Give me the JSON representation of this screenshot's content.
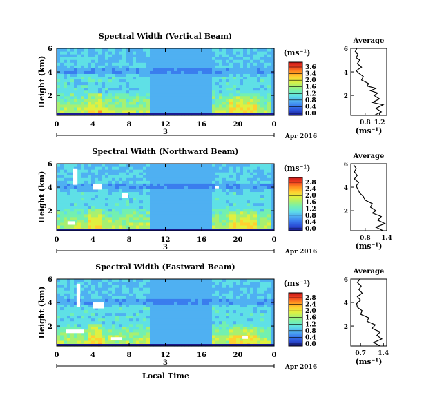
{
  "figure": {
    "x_axis_title": "Local Time",
    "date_label": "Apr 2016",
    "cbar_unit": "(ms⁻¹)",
    "avg_title": "Average",
    "avg_unit": "(ms⁻¹)",
    "colormap": [
      "#1a1a8f",
      "#2b4fd6",
      "#3a7dee",
      "#4fb0f2",
      "#5fe0e6",
      "#73f0b0",
      "#a8f070",
      "#e0f040",
      "#ffd030",
      "#ff9020",
      "#f04020",
      "#c81818"
    ]
  },
  "chart_data": [
    {
      "type": "heatmap",
      "title": "Spectral Width (Vertical Beam)",
      "ylabel": "Height (km)",
      "ylim": [
        0.3,
        6
      ],
      "yticks": [
        "2",
        "4",
        "6"
      ],
      "xlim": [
        0,
        24
      ],
      "xticks": [
        "0",
        "4",
        "8",
        "12",
        "16",
        "20",
        "0"
      ],
      "day_label": "3",
      "colorbar": {
        "min": 0.0,
        "max": 3.6,
        "ticks": [
          "3.6",
          "3.4",
          "2.0",
          "1.6",
          "1.2",
          "0.8",
          "0.4",
          "0.0"
        ]
      },
      "average": {
        "title": "Average",
        "xlim": [
          0.4,
          1.4
        ],
        "xticks": [
          "0.8",
          "1.2"
        ],
        "yticks": [
          "2",
          "4",
          "6"
        ],
        "profile": [
          [
            1.05,
            0.3
          ],
          [
            1.25,
            0.6
          ],
          [
            1.1,
            0.9
          ],
          [
            1.3,
            1.2
          ],
          [
            1.0,
            1.4
          ],
          [
            1.2,
            1.7
          ],
          [
            1.05,
            2.0
          ],
          [
            1.15,
            2.2
          ],
          [
            0.95,
            2.4
          ],
          [
            1.1,
            2.6
          ],
          [
            0.85,
            2.8
          ],
          [
            0.9,
            3.0
          ],
          [
            0.7,
            3.3
          ],
          [
            0.75,
            3.6
          ],
          [
            0.62,
            3.9
          ],
          [
            0.55,
            4.1
          ],
          [
            0.7,
            4.4
          ],
          [
            0.58,
            4.7
          ],
          [
            0.65,
            5.0
          ],
          [
            0.55,
            5.2
          ],
          [
            0.6,
            5.5
          ],
          [
            0.52,
            5.7
          ],
          [
            0.57,
            6.0
          ]
        ]
      }
    },
    {
      "type": "heatmap",
      "title": "Spectral Width (Northward Beam)",
      "ylabel": "Height (km)",
      "ylim": [
        0.3,
        6
      ],
      "yticks": [
        "2",
        "4",
        "6"
      ],
      "xlim": [
        0,
        24
      ],
      "xticks": [
        "0",
        "4",
        "8",
        "12",
        "16",
        "20",
        "0"
      ],
      "day_label": "3",
      "colorbar": {
        "min": 0.0,
        "max": 2.8,
        "ticks": [
          "2.8",
          "2.4",
          "2.0",
          "1.6",
          "1.2",
          "0.8",
          "0.4",
          "0.0"
        ]
      },
      "average": {
        "title": "Average",
        "xlim": [
          0.4,
          1.4
        ],
        "xticks": [
          "0.8",
          "1.4"
        ],
        "yticks": [
          "2",
          "4",
          "6"
        ],
        "profile": [
          [
            1.3,
            0.3
          ],
          [
            1.1,
            0.6
          ],
          [
            1.35,
            0.9
          ],
          [
            1.15,
            1.2
          ],
          [
            1.25,
            1.5
          ],
          [
            1.0,
            1.8
          ],
          [
            1.1,
            2.0
          ],
          [
            0.95,
            2.3
          ],
          [
            1.0,
            2.6
          ],
          [
            0.8,
            2.9
          ],
          [
            0.75,
            3.2
          ],
          [
            0.65,
            3.5
          ],
          [
            0.6,
            3.8
          ],
          [
            0.55,
            4.1
          ],
          [
            0.62,
            4.4
          ],
          [
            0.5,
            4.7
          ],
          [
            0.58,
            5.0
          ],
          [
            0.5,
            5.3
          ],
          [
            0.55,
            5.6
          ],
          [
            0.48,
            5.9
          ]
        ]
      }
    },
    {
      "type": "heatmap",
      "title": "Spectral Width (Eastward Beam)",
      "ylabel": "Height (km)",
      "ylim": [
        0.3,
        6
      ],
      "yticks": [
        "2",
        "4",
        "6"
      ],
      "xlim": [
        0,
        24
      ],
      "xticks": [
        "0",
        "4",
        "8",
        "12",
        "16",
        "20",
        "0"
      ],
      "day_label": "3",
      "colorbar": {
        "min": 0.0,
        "max": 2.8,
        "ticks": [
          "2.8",
          "2.4",
          "2.0",
          "1.6",
          "1.2",
          "0.8",
          "0.4",
          "0.0"
        ]
      },
      "average": {
        "title": "Average",
        "xlim": [
          0.4,
          1.5
        ],
        "xticks": [
          "0.7",
          "1.4"
        ],
        "yticks": [
          "2",
          "4",
          "6"
        ],
        "profile": [
          [
            1.3,
            0.3
          ],
          [
            1.1,
            0.6
          ],
          [
            1.35,
            0.9
          ],
          [
            1.2,
            1.2
          ],
          [
            1.3,
            1.5
          ],
          [
            1.05,
            1.8
          ],
          [
            1.15,
            2.1
          ],
          [
            0.9,
            2.4
          ],
          [
            0.95,
            2.7
          ],
          [
            0.7,
            3.0
          ],
          [
            0.75,
            3.3
          ],
          [
            0.6,
            3.6
          ],
          [
            0.58,
            3.9
          ],
          [
            0.7,
            4.2
          ],
          [
            0.6,
            4.5
          ],
          [
            0.75,
            4.8
          ],
          [
            0.65,
            5.1
          ],
          [
            0.72,
            5.4
          ],
          [
            0.6,
            5.7
          ],
          [
            0.68,
            6.0
          ]
        ]
      }
    }
  ]
}
